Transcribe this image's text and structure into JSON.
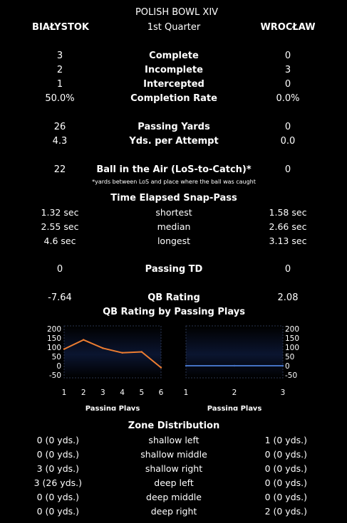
{
  "title": "POLISH BOWL XIV",
  "period": "1st Quarter",
  "teams": {
    "left": "BIAŁYSTOK",
    "right": "WROCŁAW"
  },
  "stats": [
    {
      "label": "Complete",
      "left": "3",
      "right": "0",
      "bold": true
    },
    {
      "label": "Incomplete",
      "left": "2",
      "right": "3",
      "bold": true
    },
    {
      "label": "Intercepted",
      "left": "1",
      "right": "0",
      "bold": true
    },
    {
      "label": "Completion Rate",
      "left": "50.0%",
      "right": "0.0%",
      "bold": true
    },
    {
      "label": "Passing Yards",
      "left": "26",
      "right": "0",
      "bold": true
    },
    {
      "label": "Yds. per Attempt",
      "left": "4.3",
      "right": "0.0",
      "bold": true
    },
    {
      "label": "Ball in the Air (LoS-to-Catch)*",
      "left": "22",
      "right": "0",
      "bold": true
    },
    {
      "label": "shortest",
      "left": "1.32 sec",
      "right": "1.58 sec",
      "bold": false
    },
    {
      "label": "median",
      "left": "2.55 sec",
      "right": "2.66 sec",
      "bold": false
    },
    {
      "label": "longest",
      "left": "4.6 sec",
      "right": "3.13 sec",
      "bold": false
    },
    {
      "label": "Passing TD",
      "left": "0",
      "right": "0",
      "bold": true
    },
    {
      "label": "QB Rating",
      "left": "-7.64",
      "right": "2.08",
      "bold": true
    }
  ],
  "ball_air_note": "*yards between LoS and place where the ball was caught",
  "snap_pass_heading": "Time Elapsed Snap-Pass",
  "chart_heading": "QB Rating by Passing Plays",
  "zone_heading": "Zone Distribution",
  "zones": [
    {
      "label": "shallow left",
      "left": "0 (0 yds.)",
      "right": "1 (0 yds.)"
    },
    {
      "label": "shallow middle",
      "left": "0 (0 yds.)",
      "right": "0 (0 yds.)"
    },
    {
      "label": "shallow right",
      "left": "3 (0 yds.)",
      "right": "0 (0 yds.)"
    },
    {
      "label": "deep left",
      "left": "3 (26 yds.)",
      "right": "0 (0 yds.)"
    },
    {
      "label": "deep middle",
      "left": "0 (0 yds.)",
      "right": "0 (0 yds.)"
    },
    {
      "label": "deep right",
      "left": "0 (0 yds.)",
      "right": "2 (0 yds.)"
    }
  ],
  "colors": {
    "left_series": "#ed7d31",
    "right_series": "#4472c4",
    "text": "#ffffff",
    "background": "#000000"
  },
  "chart_data": [
    {
      "type": "line",
      "team": "BIAŁYSTOK",
      "xlabel": "Passing Plays",
      "ylabel": "",
      "x": [
        1,
        2,
        3,
        4,
        5,
        6
      ],
      "values": [
        90,
        140,
        95,
        70,
        75,
        -10
      ],
      "xlim": [
        1,
        6
      ],
      "ylim": [
        -50,
        200
      ],
      "yticks": [
        "200",
        "150",
        "100",
        "50",
        "0",
        "-50"
      ],
      "xticks": [
        "1",
        "2",
        "3",
        "4",
        "5",
        "6"
      ],
      "y_axis_side": "left",
      "grid": false
    },
    {
      "type": "line",
      "team": "WROCŁAW",
      "xlabel": "Passing Plays",
      "ylabel": "",
      "x": [
        1,
        2,
        3
      ],
      "values": [
        0,
        0,
        0
      ],
      "xlim": [
        1,
        3
      ],
      "ylim": [
        -50,
        200
      ],
      "yticks": [
        "200",
        "150",
        "100",
        "50",
        "0",
        "-50"
      ],
      "xticks": [
        "1",
        "2",
        "3"
      ],
      "y_axis_side": "right",
      "grid": false
    }
  ]
}
